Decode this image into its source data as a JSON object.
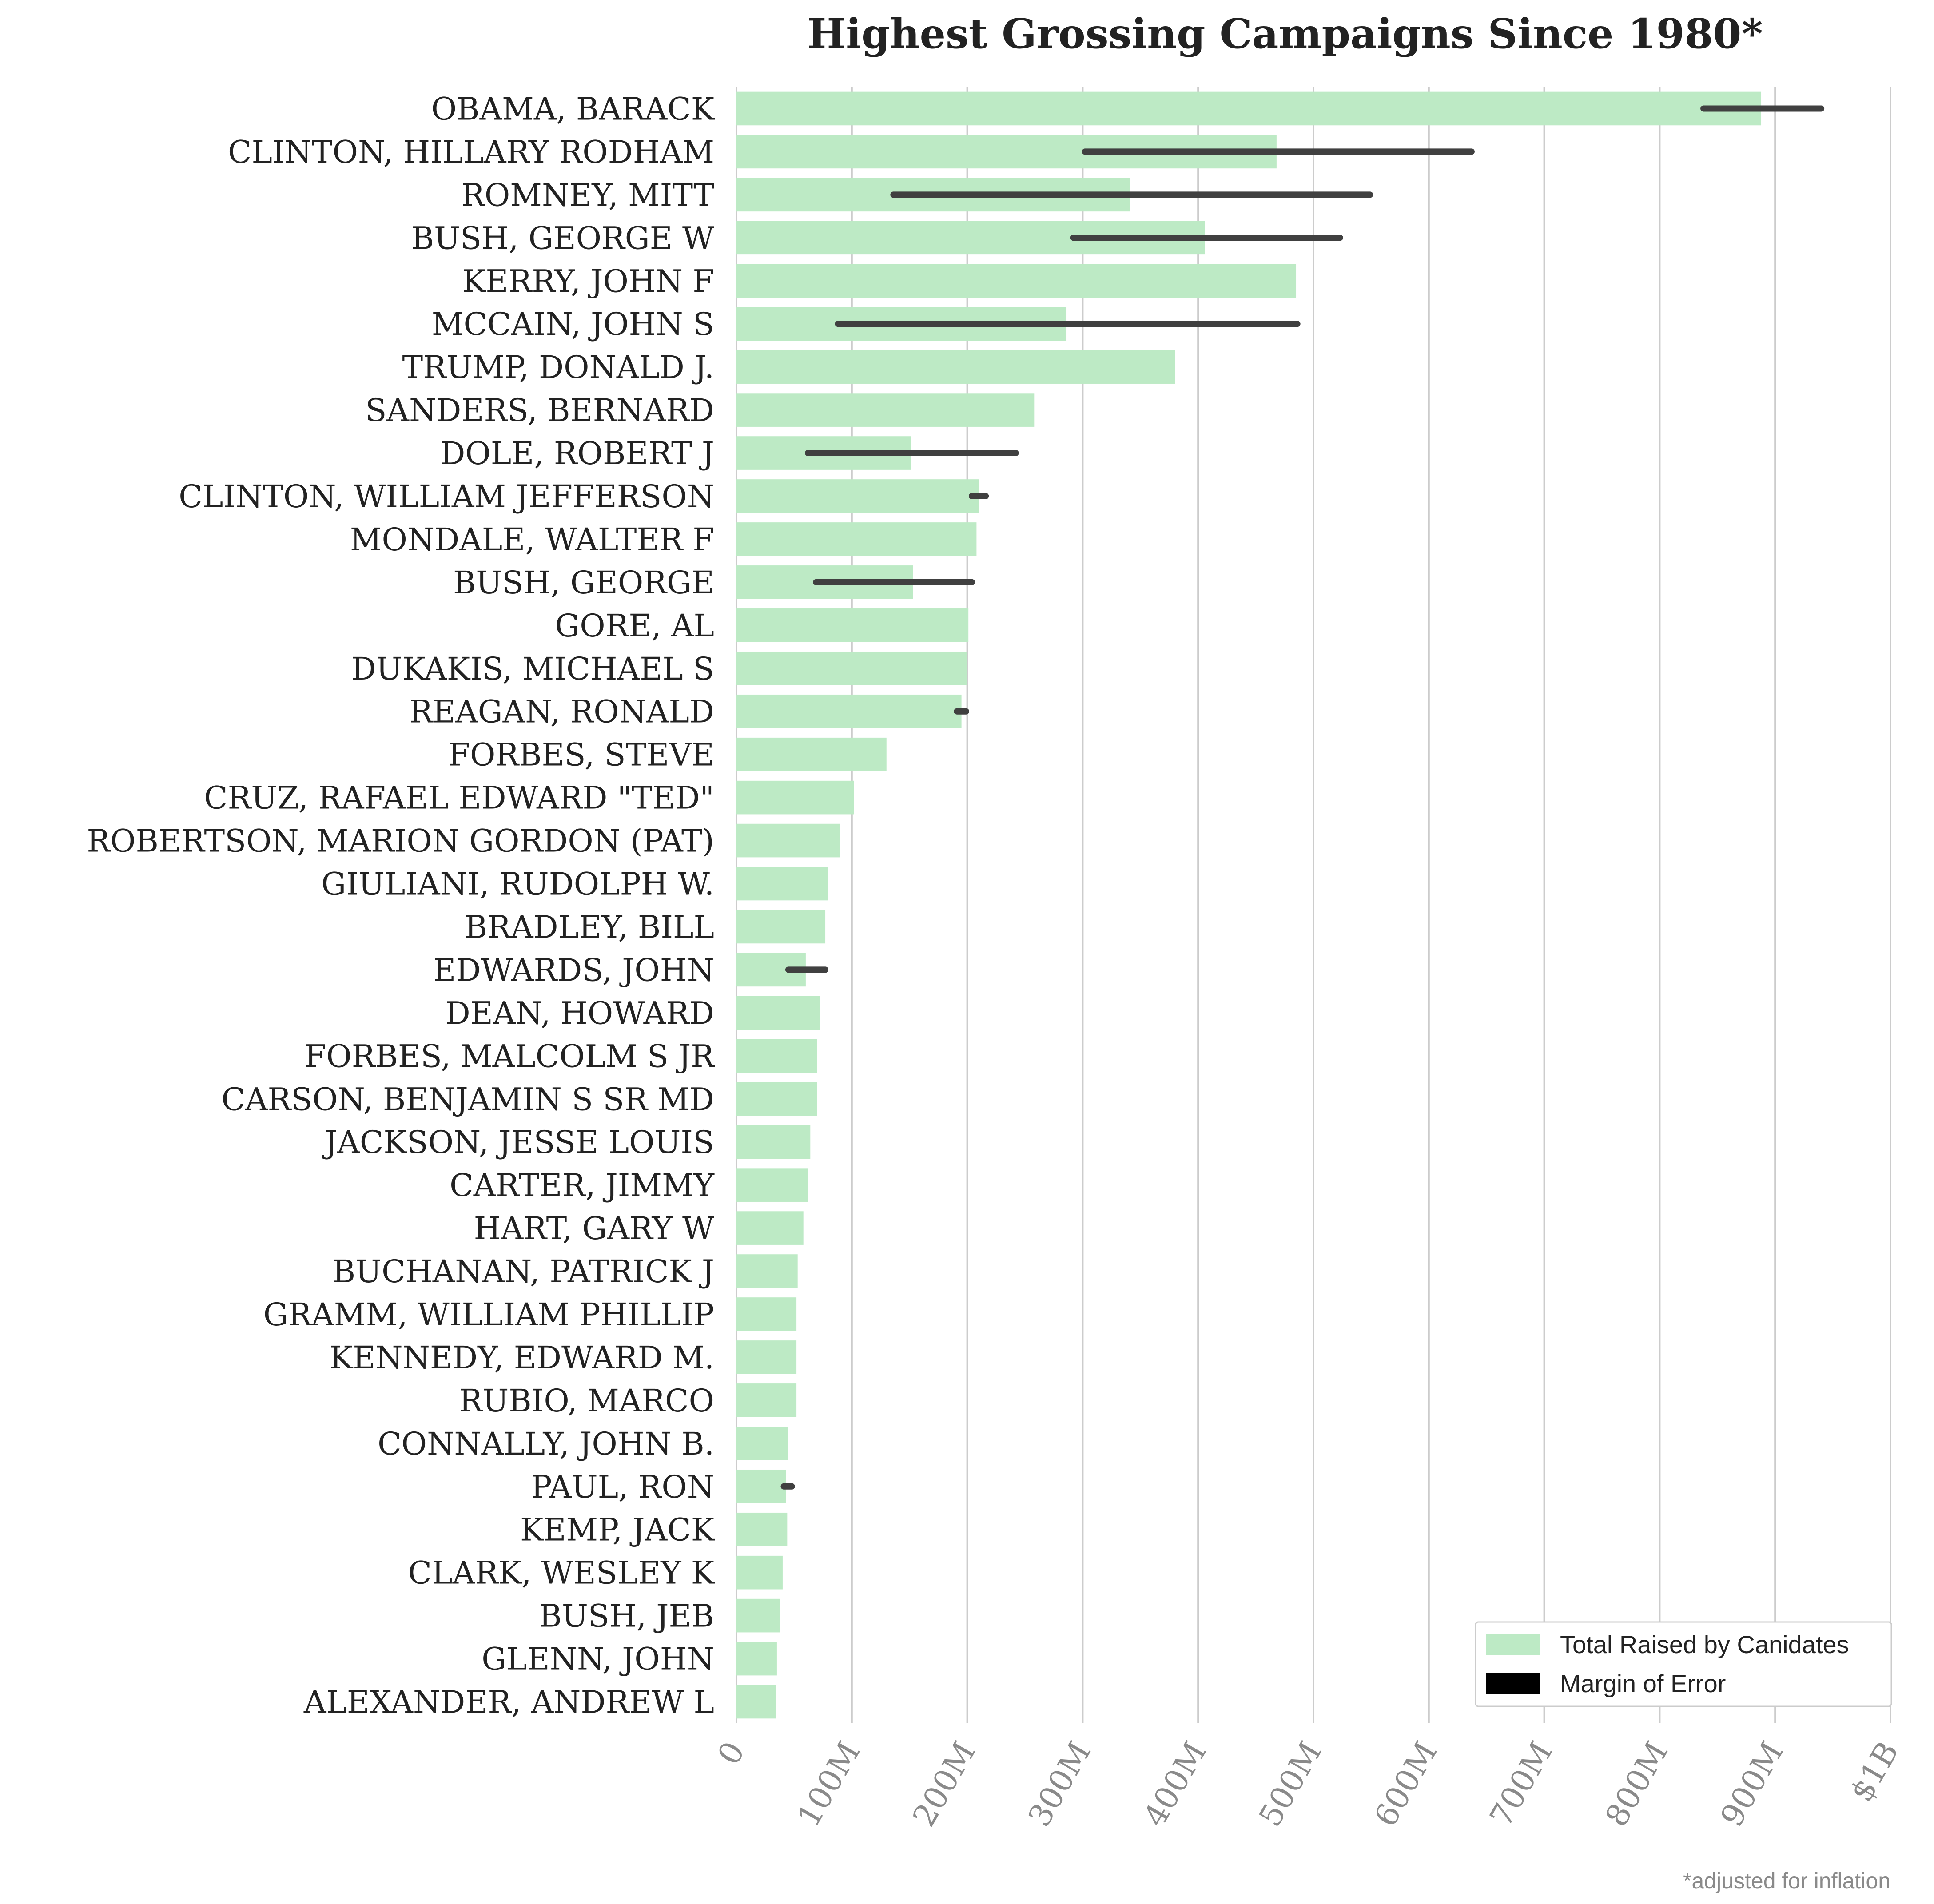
{
  "chart_data": {
    "type": "bar",
    "orientation": "horizontal",
    "title": "Highest Grossing Campaigns Since 1980*",
    "xlabel": "",
    "ylabel": "",
    "footnote": "*adjusted for inflation",
    "xlim": [
      0,
      1000000000
    ],
    "x_ticks": [
      {
        "value": 0,
        "label": "0"
      },
      {
        "value": 100000000,
        "label": "100M"
      },
      {
        "value": 200000000,
        "label": "200M"
      },
      {
        "value": 300000000,
        "label": "300M"
      },
      {
        "value": 400000000,
        "label": "400M"
      },
      {
        "value": 500000000,
        "label": "500M"
      },
      {
        "value": 600000000,
        "label": "600M"
      },
      {
        "value": 700000000,
        "label": "700M"
      },
      {
        "value": 800000000,
        "label": "800M"
      },
      {
        "value": 900000000,
        "label": "900M"
      },
      {
        "value": 1000000000,
        "label": "$1B"
      }
    ],
    "grid": "vertical",
    "legend_position": "bottom-right",
    "legend": [
      {
        "label": "Total Raised by Canidates",
        "color": "#bdeac5"
      },
      {
        "label": "Margin of Error",
        "color": "#000000"
      }
    ],
    "colors": {
      "bar": "#bdeac5",
      "error": "#404040",
      "grid": "#cccccc"
    },
    "categories": [
      "OBAMA, BARACK",
      "CLINTON, HILLARY RODHAM",
      "ROMNEY, MITT",
      "BUSH, GEORGE W",
      "KERRY, JOHN F",
      "MCCAIN, JOHN S",
      "TRUMP, DONALD J.",
      "SANDERS, BERNARD",
      "DOLE, ROBERT J",
      "CLINTON, WILLIAM JEFFERSON",
      "MONDALE, WALTER F",
      "BUSH, GEORGE",
      "GORE, AL",
      "DUKAKIS, MICHAEL S",
      "REAGAN, RONALD",
      "FORBES, STEVE",
      "CRUZ, RAFAEL EDWARD \"TED\"",
      "ROBERTSON, MARION GORDON (PAT)",
      "GIULIANI, RUDOLPH W.",
      "BRADLEY, BILL",
      "EDWARDS, JOHN",
      "DEAN, HOWARD",
      "FORBES, MALCOLM S JR",
      "CARSON, BENJAMIN S SR MD",
      "JACKSON, JESSE LOUIS",
      "CARTER, JIMMY",
      "HART, GARY W",
      "BUCHANAN, PATRICK J",
      "GRAMM, WILLIAM PHILLIP",
      "KENNEDY, EDWARD M.",
      "RUBIO, MARCO",
      "CONNALLY, JOHN B.",
      "PAUL, RON",
      "KEMP, JACK",
      "CLARK, WESLEY K",
      "BUSH, JEB",
      "GLENN, JOHN",
      "ALEXANDER, ANDREW L"
    ],
    "values": [
      888000000,
      468000000,
      341000000,
      406000000,
      485000000,
      286000000,
      380000000,
      258000000,
      151000000,
      210000000,
      208000000,
      153000000,
      201000000,
      200000000,
      195000000,
      130000000,
      102000000,
      90000000,
      79000000,
      77000000,
      60000000,
      72000000,
      70000000,
      70000000,
      64000000,
      62000000,
      58000000,
      53000000,
      52000000,
      52000000,
      52000000,
      45000000,
      43000000,
      44000000,
      40000000,
      38000000,
      35000000,
      34000000
    ],
    "error_ranges": [
      [
        838000000,
        940000000
      ],
      [
        302000000,
        637000000
      ],
      [
        136000000,
        549000000
      ],
      [
        292000000,
        523000000
      ],
      null,
      [
        88000000,
        486000000
      ],
      null,
      null,
      [
        62000000,
        242000000
      ],
      [
        204000000,
        216000000
      ],
      null,
      [
        69000000,
        204000000
      ],
      null,
      null,
      [
        191000000,
        199000000
      ],
      null,
      null,
      null,
      null,
      null,
      [
        45000000,
        77000000
      ],
      null,
      null,
      null,
      null,
      null,
      null,
      null,
      null,
      null,
      null,
      null,
      [
        41000000,
        48000000
      ],
      null,
      null,
      null,
      null,
      null
    ]
  }
}
